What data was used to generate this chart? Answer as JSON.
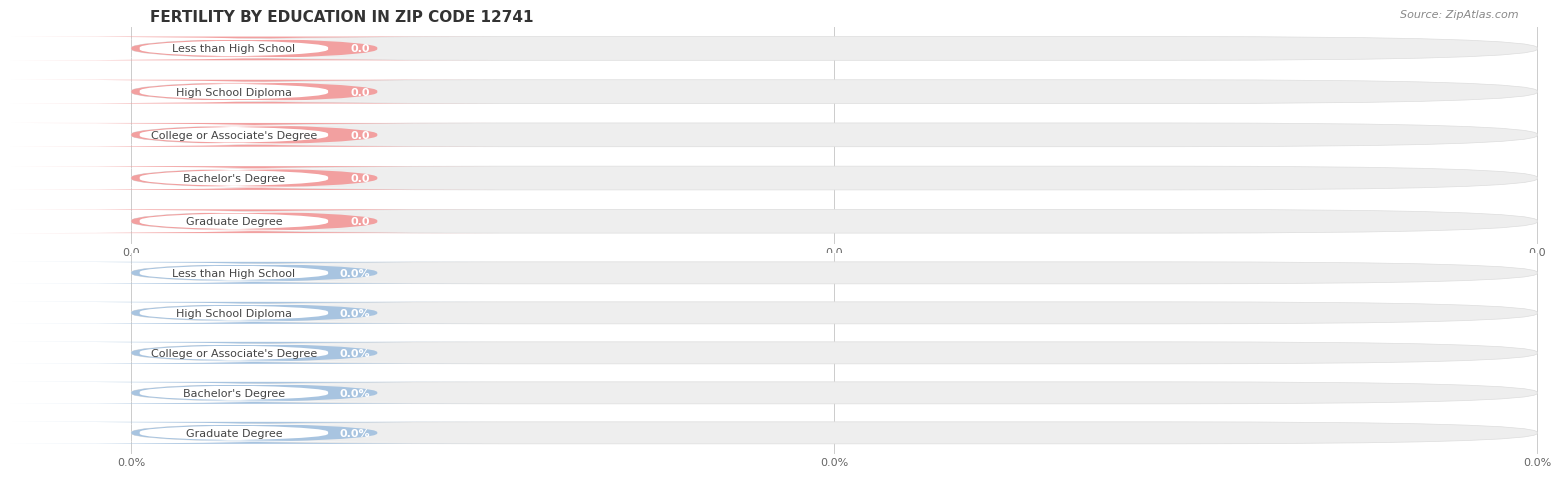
{
  "title": "FERTILITY BY EDUCATION IN ZIP CODE 12741",
  "source": "Source: ZipAtlas.com",
  "categories": [
    "Less than High School",
    "High School Diploma",
    "College or Associate's Degree",
    "Bachelor's Degree",
    "Graduate Degree"
  ],
  "top_values": [
    0.0,
    0.0,
    0.0,
    0.0,
    0.0
  ],
  "bottom_values": [
    0.0,
    0.0,
    0.0,
    0.0,
    0.0
  ],
  "top_bar_color": "#f2a0a0",
  "top_bar_bg": "#eeeeee",
  "bottom_bar_color": "#a8c4e0",
  "bottom_bar_bg": "#eeeeee",
  "top_label_bg": "#ffffff",
  "bottom_label_bg": "#ffffff",
  "top_value_text": "#c87878",
  "bottom_value_text": "#7098c8",
  "title_fontsize": 11,
  "label_fontsize": 8,
  "value_fontsize": 8,
  "tick_fontsize": 8,
  "background_color": "#ffffff",
  "grid_color": "#cccccc",
  "top_tick_labels": [
    "0.0",
    "0.0",
    "0.0"
  ],
  "bottom_tick_labels": [
    "0.0%",
    "0.0%",
    "0.0%"
  ]
}
